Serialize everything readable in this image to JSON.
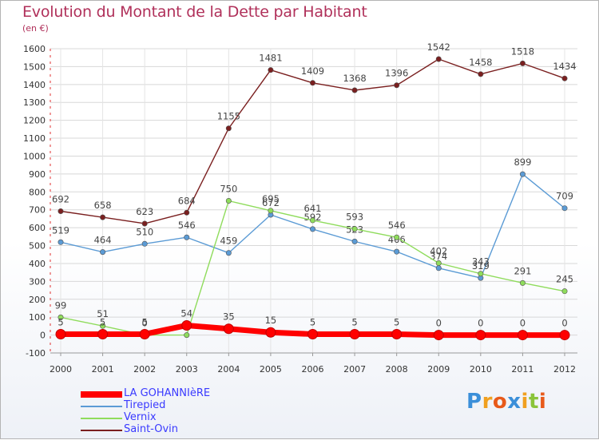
{
  "chart_data": {
    "type": "line",
    "title": "Evolution du Montant de la Dette par Habitant",
    "subtitle": "(en €)",
    "xlabel": "",
    "ylabel": "",
    "ylim": [
      -100,
      1600
    ],
    "yticks": [
      -100,
      0,
      100,
      200,
      300,
      400,
      500,
      600,
      700,
      800,
      900,
      1000,
      1100,
      1200,
      1300,
      1400,
      1500,
      1600
    ],
    "categories": [
      "2000",
      "2001",
      "2002",
      "2003",
      "2004",
      "2005",
      "2006",
      "2007",
      "2008",
      "2009",
      "2010",
      "2011",
      "2012"
    ],
    "series": [
      {
        "name": "Saint-Ovin",
        "color": "#7a1f1f",
        "values": [
          692,
          658,
          623,
          684,
          1155,
          1481,
          1409,
          1368,
          1396,
          1542,
          1458,
          1518,
          1434
        ],
        "labels": [
          "692",
          "658",
          "623",
          "684",
          "1155",
          "1481",
          "1409",
          "1368",
          "1396",
          "1542",
          "1458",
          "1518",
          "1434"
        ]
      },
      {
        "name": "Tirepied",
        "color": "#5b9bd5",
        "values": [
          519,
          464,
          510,
          546,
          459,
          672,
          592,
          523,
          466,
          374,
          319,
          899,
          709
        ],
        "labels": [
          "519",
          "464",
          "510",
          "546",
          "459",
          "672",
          "592",
          "523",
          "466",
          "374",
          "319",
          "899",
          "709"
        ]
      },
      {
        "name": "Vernix",
        "color": "#8fdc5c",
        "values": [
          99,
          51,
          0,
          0,
          750,
          695,
          641,
          593,
          546,
          402,
          343,
          291,
          245
        ],
        "labels": [
          "99",
          "51",
          "0",
          "",
          "750",
          "695",
          "641",
          "593",
          "546",
          "402",
          "343",
          "291",
          "245"
        ]
      },
      {
        "name": "LA GOHANNIèRE",
        "color": "#ff0000",
        "values": [
          5,
          5,
          5,
          54,
          35,
          15,
          5,
          5,
          5,
          0,
          0,
          0,
          0
        ],
        "labels": [
          "5",
          "5",
          "5",
          "54",
          "35",
          "15",
          "5",
          "5",
          "5",
          "0",
          "0",
          "0",
          "0"
        ]
      }
    ],
    "legend": [
      "LA GOHANNIèRE",
      "Tirepied",
      "Vernix",
      "Saint-Ovin"
    ],
    "legend_position": "bottom-left"
  },
  "logo": {
    "letters": [
      "P",
      "r",
      "o",
      "x",
      "i",
      "t",
      "i"
    ],
    "colors": [
      "#3b8fd9",
      "#f0a020",
      "#e85a1a",
      "#3b8fd9",
      "#f0a020",
      "#8ac43a",
      "#e85a1a"
    ]
  }
}
